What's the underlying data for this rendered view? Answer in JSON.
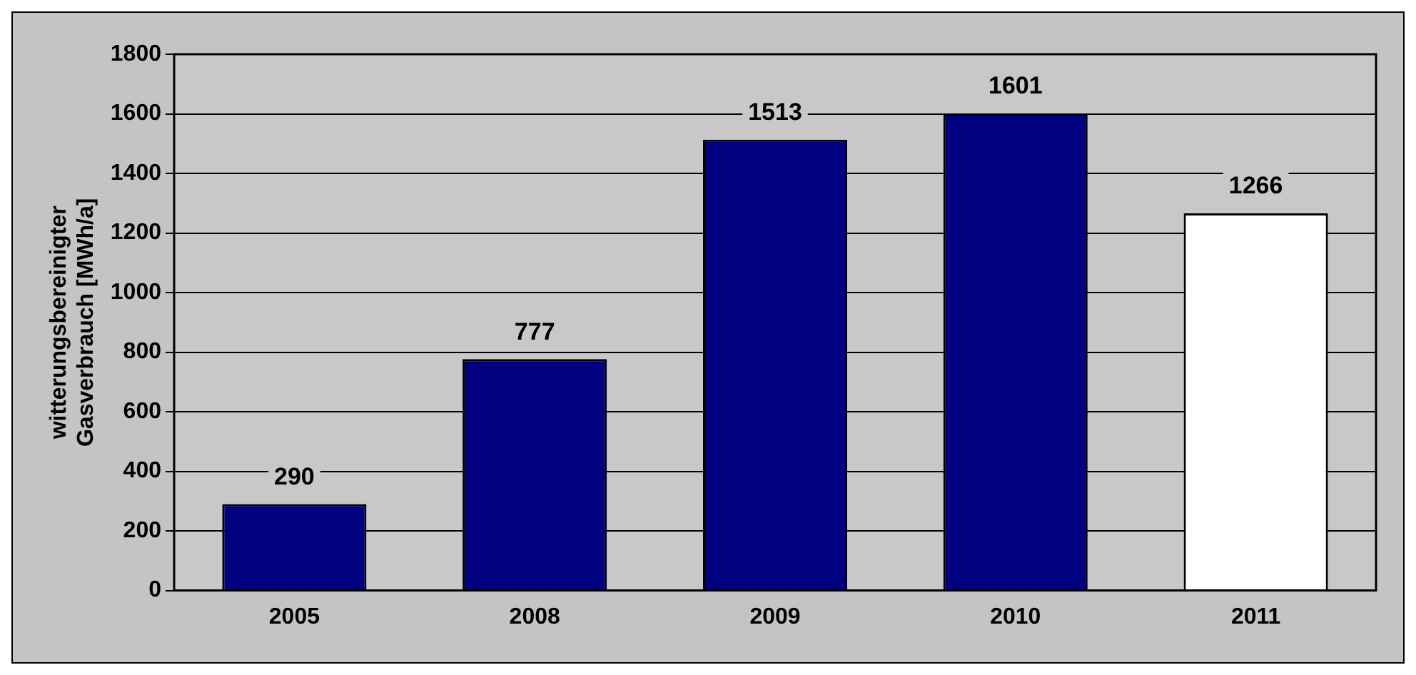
{
  "chart_data": {
    "type": "bar",
    "ylabel": "witterungsbereinigter Gasverbrauch [MWh/a]",
    "categories": [
      "2005",
      "2008",
      "2009",
      "2010",
      "2011"
    ],
    "values": [
      290,
      777,
      1513,
      1601,
      1266
    ],
    "colors": [
      "#000080",
      "#000080",
      "#000080",
      "#000080",
      "#ffffff"
    ],
    "ylim": [
      0,
      1800
    ],
    "yticks": [
      0,
      200,
      400,
      600,
      800,
      1000,
      1200,
      1400,
      1600,
      1800
    ],
    "grid": "y",
    "data_labels": true,
    "legend": false
  }
}
